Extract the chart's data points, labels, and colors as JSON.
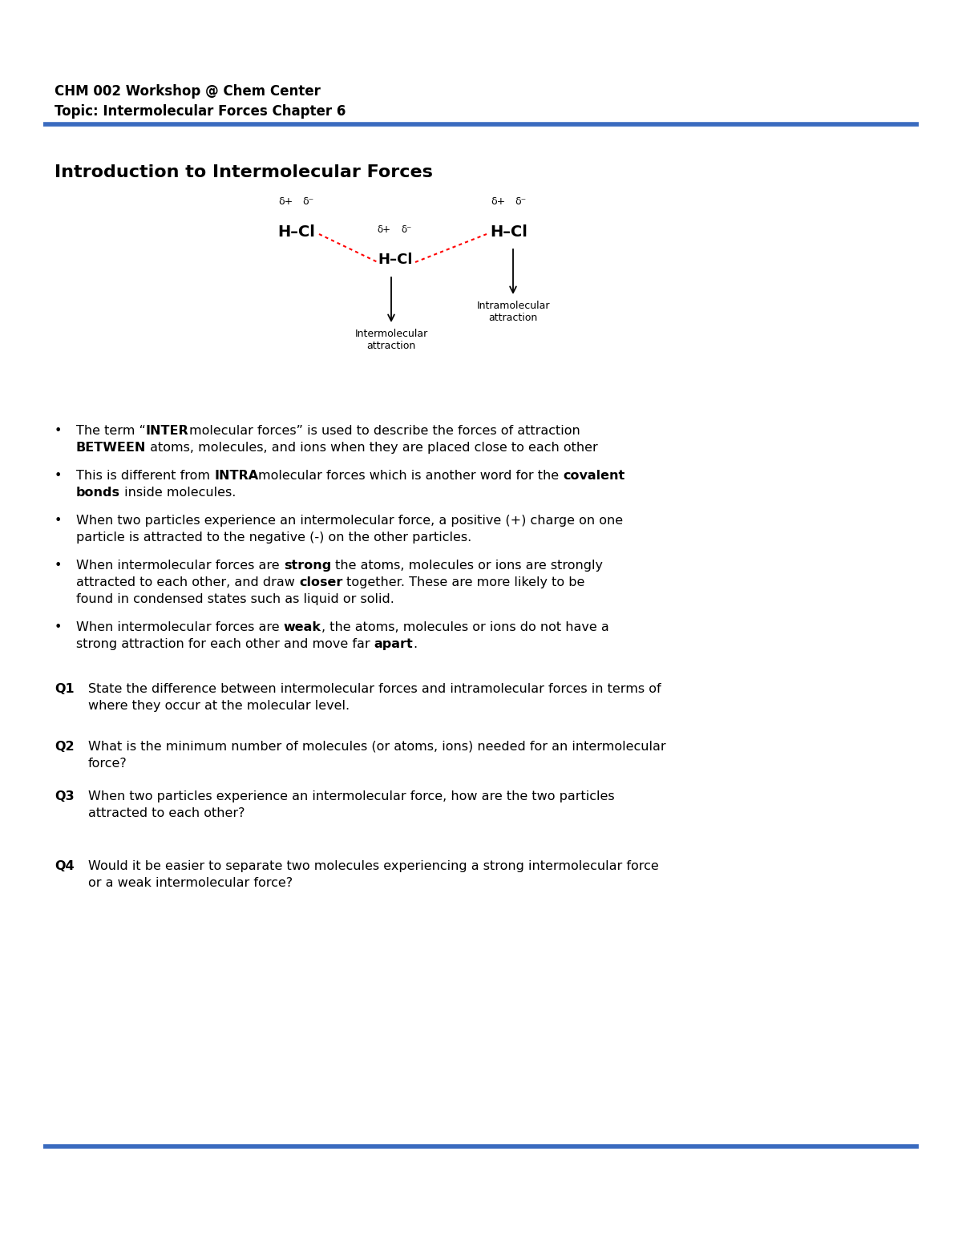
{
  "bg_color": "#ffffff",
  "header_line1": "CHM 002 Workshop @ Chem Center",
  "header_line2": "Topic: Intermolecular Forces Chapter 6",
  "blue_line_color": "#3a6bbf",
  "section_title": "Introduction to Intermolecular Forces",
  "font_family": "Arial",
  "header_fontsize": 12,
  "section_fontsize": 16,
  "body_fontsize": 11.5,
  "q_fontsize": 11.5,
  "diag_font": 13
}
